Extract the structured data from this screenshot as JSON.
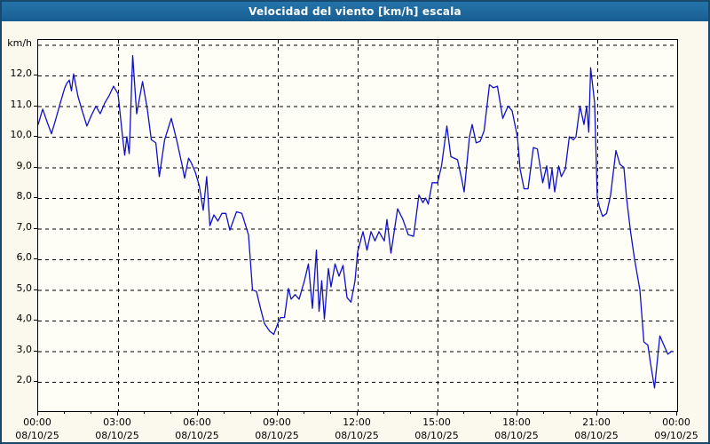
{
  "window": {
    "title": "Velocidad del viento [km/h] escala"
  },
  "colors": {
    "titlebar_bg": "#1c6a9e",
    "titlebar_text": "#ffffff",
    "outer_border": "#19486e",
    "background": "#fbf9ee",
    "plot_background": "#fefdf6",
    "line": "#1010cc",
    "grid": "#000000",
    "axis_text": "#000000"
  },
  "chart_data": {
    "type": "line",
    "title": "Velocidad del viento [km/h] escala",
    "unit_label": "km/h",
    "grid": "dashed",
    "legend": "none",
    "ylim": [
      1.0,
      13.15
    ],
    "xlim_hours": [
      0,
      24
    ],
    "y_ticks": [
      {
        "value": 12,
        "label": "12,0"
      },
      {
        "value": 11,
        "label": "11,0"
      },
      {
        "value": 10,
        "label": "10,0"
      },
      {
        "value": 9,
        "label": "9,0"
      },
      {
        "value": 8,
        "label": "8,0"
      },
      {
        "value": 7,
        "label": "7,0"
      },
      {
        "value": 6,
        "label": "6,0"
      },
      {
        "value": 5,
        "label": "5,0"
      },
      {
        "value": 4,
        "label": "4,0"
      },
      {
        "value": 3,
        "label": "3,0"
      },
      {
        "value": 2,
        "label": "2,0"
      }
    ],
    "y_gridline_values": [
      13,
      12,
      11,
      10,
      9,
      8,
      7,
      6,
      5,
      4,
      3,
      2
    ],
    "x_ticks": [
      {
        "hour": 0,
        "time": "00:00",
        "date": "08/10/25"
      },
      {
        "hour": 3,
        "time": "03:00",
        "date": "08/10/25"
      },
      {
        "hour": 6,
        "time": "06:00",
        "date": "08/10/25"
      },
      {
        "hour": 9,
        "time": "09:00",
        "date": "08/10/25"
      },
      {
        "hour": 12,
        "time": "12:00",
        "date": "08/10/25"
      },
      {
        "hour": 15,
        "time": "15:00",
        "date": "08/10/25"
      },
      {
        "hour": 18,
        "time": "18:00",
        "date": "08/10/25"
      },
      {
        "hour": 21,
        "time": "21:00",
        "date": "08/10/25"
      },
      {
        "hour": 24,
        "time": "00:00",
        "date": "09/10/25"
      }
    ],
    "minor_x_tick_every_hours": 1,
    "series": [
      {
        "name": "Velocidad del viento [km/h]",
        "points_hour_value": [
          [
            0.0,
            10.4
          ],
          [
            0.17,
            10.9
          ],
          [
            0.33,
            10.5
          ],
          [
            0.5,
            10.1
          ],
          [
            0.67,
            10.6
          ],
          [
            0.83,
            11.1
          ],
          [
            1.0,
            11.6
          ],
          [
            1.08,
            11.75
          ],
          [
            1.17,
            11.85
          ],
          [
            1.25,
            11.5
          ],
          [
            1.33,
            12.05
          ],
          [
            1.5,
            11.3
          ],
          [
            1.67,
            10.8
          ],
          [
            1.83,
            10.35
          ],
          [
            2.0,
            10.7
          ],
          [
            2.17,
            11.0
          ],
          [
            2.33,
            10.75
          ],
          [
            2.5,
            11.1
          ],
          [
            2.67,
            11.35
          ],
          [
            2.83,
            11.65
          ],
          [
            3.0,
            11.4
          ],
          [
            3.17,
            10.0
          ],
          [
            3.25,
            9.4
          ],
          [
            3.33,
            10.0
          ],
          [
            3.42,
            9.45
          ],
          [
            3.55,
            12.65
          ],
          [
            3.7,
            10.75
          ],
          [
            3.92,
            11.8
          ],
          [
            4.1,
            10.9
          ],
          [
            4.25,
            9.9
          ],
          [
            4.42,
            9.8
          ],
          [
            4.55,
            8.7
          ],
          [
            4.75,
            9.9
          ],
          [
            5.0,
            10.6
          ],
          [
            5.2,
            9.9
          ],
          [
            5.4,
            9.1
          ],
          [
            5.5,
            8.65
          ],
          [
            5.65,
            9.3
          ],
          [
            5.75,
            9.15
          ],
          [
            5.9,
            8.85
          ],
          [
            6.05,
            8.4
          ],
          [
            6.2,
            7.6
          ],
          [
            6.33,
            8.7
          ],
          [
            6.45,
            7.1
          ],
          [
            6.6,
            7.45
          ],
          [
            6.75,
            7.25
          ],
          [
            6.9,
            7.5
          ],
          [
            7.05,
            7.5
          ],
          [
            7.2,
            6.95
          ],
          [
            7.45,
            7.55
          ],
          [
            7.65,
            7.5
          ],
          [
            7.9,
            6.8
          ],
          [
            8.05,
            5.0
          ],
          [
            8.2,
            4.95
          ],
          [
            8.35,
            4.4
          ],
          [
            8.5,
            3.9
          ],
          [
            8.7,
            3.65
          ],
          [
            8.85,
            3.55
          ],
          [
            9.0,
            3.9
          ],
          [
            9.1,
            4.1
          ],
          [
            9.25,
            4.1
          ],
          [
            9.4,
            5.05
          ],
          [
            9.5,
            4.7
          ],
          [
            9.65,
            4.85
          ],
          [
            9.8,
            4.7
          ],
          [
            10.0,
            5.3
          ],
          [
            10.15,
            5.85
          ],
          [
            10.3,
            4.4
          ],
          [
            10.45,
            6.3
          ],
          [
            10.55,
            4.3
          ],
          [
            10.65,
            5.3
          ],
          [
            10.75,
            4.05
          ],
          [
            10.9,
            5.7
          ],
          [
            11.0,
            5.1
          ],
          [
            11.15,
            5.85
          ],
          [
            11.3,
            5.45
          ],
          [
            11.45,
            5.8
          ],
          [
            11.6,
            4.75
          ],
          [
            11.75,
            4.6
          ],
          [
            11.9,
            5.3
          ],
          [
            12.0,
            6.25
          ],
          [
            12.2,
            6.9
          ],
          [
            12.35,
            6.3
          ],
          [
            12.5,
            6.9
          ],
          [
            12.65,
            6.6
          ],
          [
            12.8,
            6.9
          ],
          [
            13.0,
            6.6
          ],
          [
            13.1,
            7.3
          ],
          [
            13.25,
            6.2
          ],
          [
            13.5,
            7.65
          ],
          [
            13.7,
            7.3
          ],
          [
            13.9,
            6.8
          ],
          [
            14.1,
            6.75
          ],
          [
            14.3,
            8.1
          ],
          [
            14.45,
            7.85
          ],
          [
            14.55,
            8.0
          ],
          [
            14.65,
            7.8
          ],
          [
            14.8,
            8.5
          ],
          [
            15.0,
            8.5
          ],
          [
            15.15,
            9.05
          ],
          [
            15.35,
            10.35
          ],
          [
            15.5,
            9.35
          ],
          [
            15.75,
            9.25
          ],
          [
            15.9,
            8.65
          ],
          [
            16.0,
            8.2
          ],
          [
            16.2,
            10.0
          ],
          [
            16.3,
            10.4
          ],
          [
            16.45,
            9.8
          ],
          [
            16.6,
            9.85
          ],
          [
            16.75,
            10.2
          ],
          [
            16.95,
            11.7
          ],
          [
            17.1,
            11.6
          ],
          [
            17.25,
            11.65
          ],
          [
            17.45,
            10.6
          ],
          [
            17.65,
            11.0
          ],
          [
            17.8,
            10.85
          ],
          [
            18.0,
            10.0
          ],
          [
            18.1,
            8.95
          ],
          [
            18.25,
            8.3
          ],
          [
            18.4,
            8.3
          ],
          [
            18.6,
            9.65
          ],
          [
            18.75,
            9.6
          ],
          [
            18.95,
            8.5
          ],
          [
            19.1,
            9.05
          ],
          [
            19.2,
            8.3
          ],
          [
            19.3,
            8.95
          ],
          [
            19.4,
            8.2
          ],
          [
            19.55,
            9.05
          ],
          [
            19.65,
            8.7
          ],
          [
            19.8,
            8.95
          ],
          [
            19.95,
            10.0
          ],
          [
            20.1,
            9.9
          ],
          [
            20.2,
            10.0
          ],
          [
            20.35,
            11.0
          ],
          [
            20.5,
            10.4
          ],
          [
            20.6,
            11.0
          ],
          [
            20.68,
            10.15
          ],
          [
            20.75,
            12.25
          ],
          [
            20.9,
            11.1
          ],
          [
            21.0,
            8.0
          ],
          [
            21.1,
            7.65
          ],
          [
            21.2,
            7.4
          ],
          [
            21.35,
            7.5
          ],
          [
            21.5,
            8.1
          ],
          [
            21.7,
            9.55
          ],
          [
            21.85,
            9.1
          ],
          [
            22.0,
            9.0
          ],
          [
            22.1,
            8.0
          ],
          [
            22.25,
            6.9
          ],
          [
            22.4,
            6.0
          ],
          [
            22.6,
            5.0
          ],
          [
            22.75,
            3.3
          ],
          [
            22.9,
            3.2
          ],
          [
            23.0,
            2.6
          ],
          [
            23.15,
            1.8
          ],
          [
            23.35,
            3.5
          ],
          [
            23.5,
            3.2
          ],
          [
            23.65,
            2.9
          ],
          [
            23.8,
            3.0
          ]
        ]
      }
    ]
  },
  "layout_note": "wind speed time-series chart, one day span"
}
